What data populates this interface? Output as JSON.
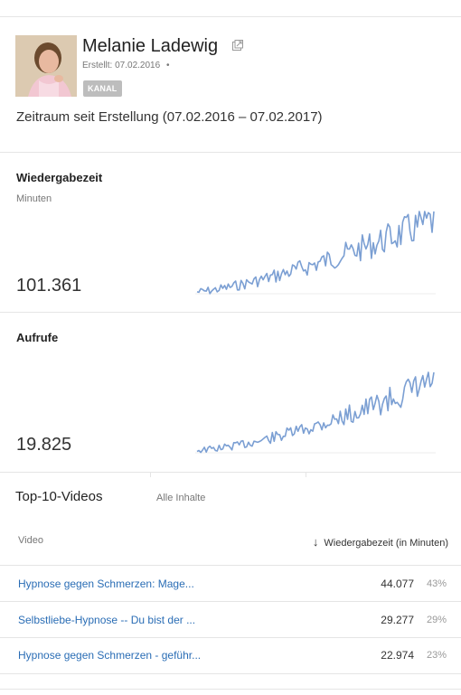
{
  "channel": {
    "name": "Melanie Ladewig",
    "created_text": "Erstellt: 07.02.2016",
    "created_sep": "•",
    "badge": "KANAL",
    "icon": "external-link-icon"
  },
  "period": "Zeitraum seit Erstellung (07.02.2016 – 07.02.2017)",
  "metrics": [
    {
      "title": "Wiedergabezeit",
      "unit": "Minuten",
      "value": "101.361",
      "color": "#7b9fd3"
    },
    {
      "title": "Aufrufe",
      "unit": "",
      "value": "19.825",
      "color": "#7b9fd3"
    }
  ],
  "top_videos": {
    "title": "Top-10-Videos",
    "filter": "Alle Inhalte",
    "col_video": "Video",
    "col_metric": "Wiedergabezeit (in Minuten)",
    "sort_icon": "arrow-down-icon",
    "rows": [
      {
        "title": "Hypnose gegen Schmerzen: Mage...",
        "value": "44.077",
        "pct": "43%"
      },
      {
        "title": "Selbstliebe-Hypnose -- Du bist der ...",
        "value": "29.277",
        "pct": "29%"
      },
      {
        "title": "Hypnose gegen Schmerzen - geführ...",
        "value": "22.974",
        "pct": "23%"
      }
    ]
  }
}
